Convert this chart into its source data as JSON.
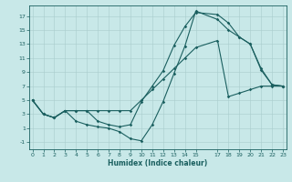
{
  "xlabel": "Humidex (Indice chaleur)",
  "bg_color": "#c8e8e8",
  "grid_color": "#a8cccc",
  "line_color": "#1a5f5f",
  "xlim": [
    -0.3,
    23.3
  ],
  "ylim": [
    -2.0,
    18.5
  ],
  "xticks": [
    0,
    1,
    2,
    3,
    4,
    5,
    6,
    7,
    8,
    9,
    10,
    11,
    12,
    13,
    14,
    15,
    17,
    18,
    19,
    20,
    21,
    22,
    23
  ],
  "yticks": [
    -1,
    1,
    3,
    5,
    7,
    9,
    11,
    13,
    15,
    17
  ],
  "line1_x": [
    0,
    1,
    2,
    3,
    4,
    5,
    6,
    7,
    8,
    9,
    10,
    11,
    12,
    13,
    14,
    15,
    17,
    18,
    19,
    20,
    21,
    22,
    23
  ],
  "line1_y": [
    5,
    3,
    2.5,
    3.5,
    3.5,
    3.5,
    2.0,
    1.5,
    1.2,
    1.5,
    4.8,
    7.0,
    9.2,
    12.8,
    15.5,
    17.5,
    17.2,
    16.0,
    14.0,
    13.0,
    9.5,
    7.2,
    7.0
  ],
  "line2_x": [
    0,
    1,
    2,
    3,
    4,
    5,
    6,
    7,
    8,
    9,
    10,
    11,
    12,
    13,
    14,
    15,
    17,
    18,
    19,
    20,
    21,
    22,
    23
  ],
  "line2_y": [
    5,
    3,
    2.5,
    3.5,
    3.5,
    3.5,
    3.5,
    3.5,
    3.5,
    3.5,
    5.0,
    6.5,
    8.0,
    9.5,
    11.0,
    12.5,
    13.5,
    5.5,
    6.0,
    6.5,
    7.0,
    7.0,
    7.0
  ],
  "line3_x": [
    0,
    1,
    2,
    3,
    4,
    5,
    6,
    7,
    8,
    9,
    10,
    11,
    12,
    13,
    14,
    15,
    17,
    18,
    19,
    20,
    21,
    22,
    23
  ],
  "line3_y": [
    5,
    3,
    2.5,
    3.5,
    2.0,
    1.5,
    1.2,
    1.0,
    0.5,
    -0.5,
    -0.8,
    1.5,
    4.8,
    8.8,
    12.7,
    17.7,
    16.5,
    15.0,
    14.0,
    13.0,
    9.3,
    7.2,
    7.0
  ]
}
